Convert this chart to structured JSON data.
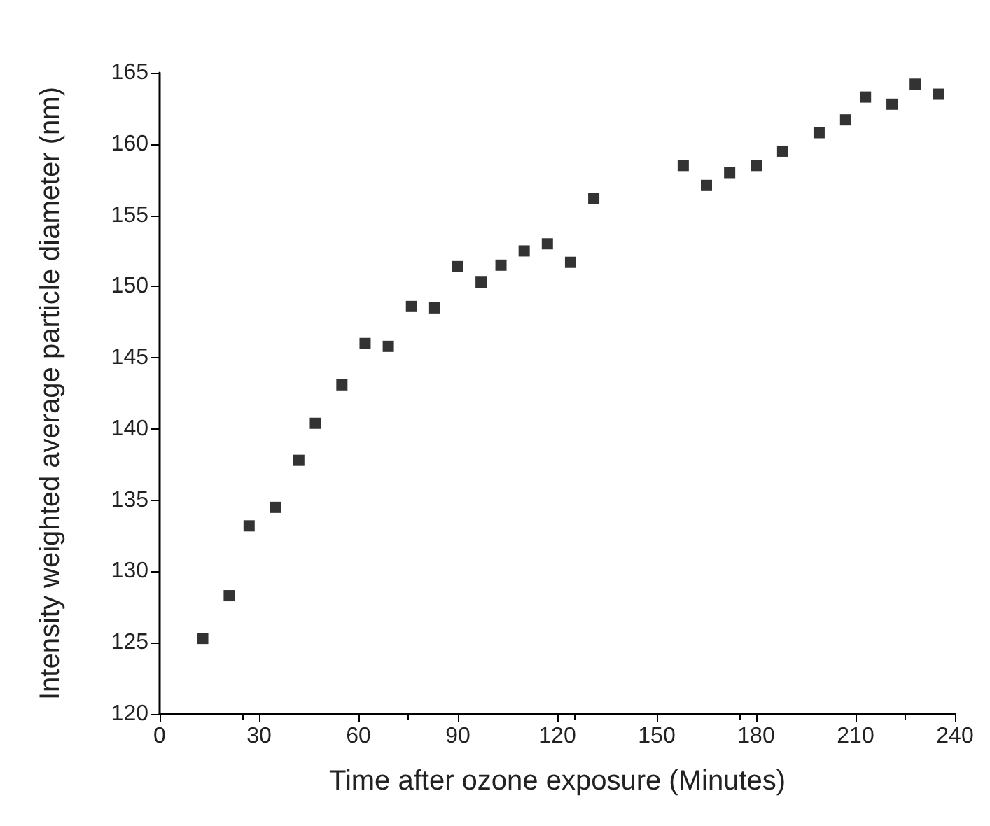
{
  "chart_data": {
    "type": "scatter",
    "xlabel": "Time after ozone exposure (Minutes)",
    "ylabel": "Intensity weighted average particle diameter (nm)",
    "x": [
      13,
      21,
      27,
      35,
      42,
      47,
      55,
      62,
      69,
      76,
      83,
      90,
      97,
      103,
      110,
      117,
      124,
      131,
      158,
      165,
      172,
      180,
      188,
      199,
      207,
      213,
      221,
      228,
      235
    ],
    "values": [
      125.3,
      128.3,
      133.2,
      134.5,
      137.8,
      140.4,
      143.1,
      146.0,
      145.8,
      148.6,
      148.5,
      151.4,
      150.3,
      151.5,
      152.5,
      153.0,
      151.7,
      156.2,
      158.5,
      157.1,
      158.0,
      158.5,
      159.5,
      160.8,
      161.7,
      163.3,
      162.8,
      164.2,
      163.5
    ],
    "color": "#000000",
    "marker": "square",
    "xlim": [
      0,
      240
    ],
    "xticks": [
      0,
      30,
      60,
      90,
      120,
      150,
      180,
      210,
      240
    ],
    "ylim": [
      120,
      165
    ],
    "yticks": [
      120,
      125,
      130,
      135,
      140,
      145,
      150,
      155,
      160,
      165
    ]
  }
}
